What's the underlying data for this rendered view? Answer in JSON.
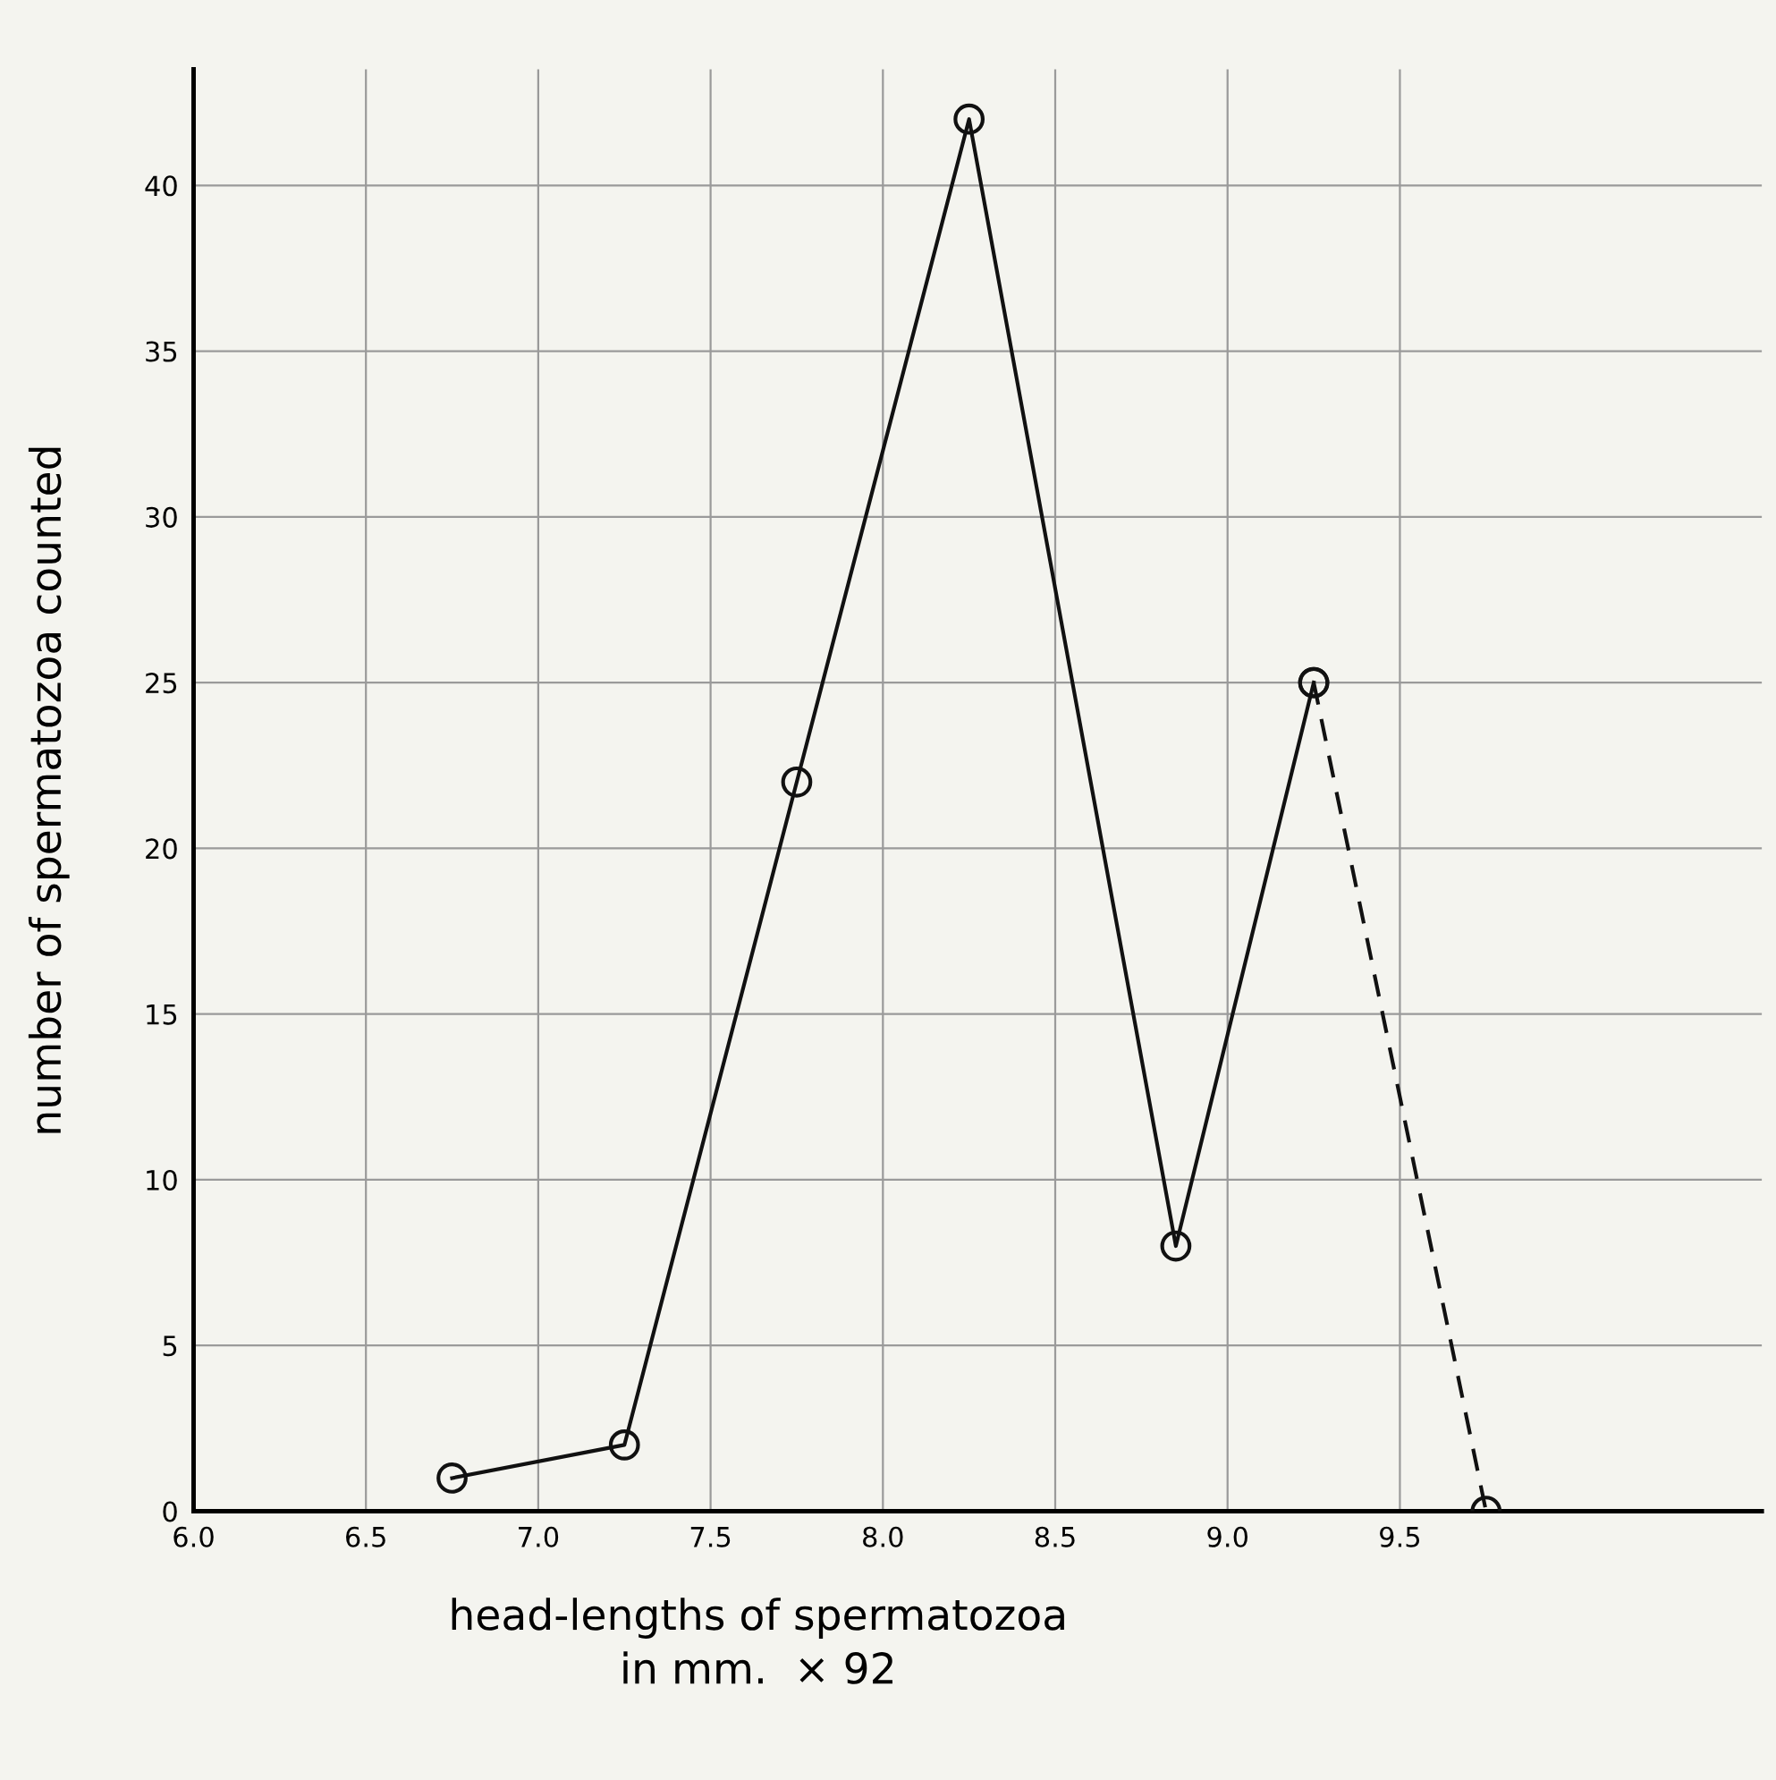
{
  "chart_data": {
    "type": "line",
    "xlabel": "head-lengths of spermatozoa\nin mm.  × 92",
    "ylabel": "number of spermatozoa counted",
    "series": [
      {
        "color": "#111111",
        "x": [
          6.75,
          7.25,
          7.75,
          8.25,
          8.85,
          9.25
        ],
        "values": [
          1,
          2,
          22,
          42,
          8,
          25
        ],
        "line_style": "solid",
        "marker": "circle"
      },
      {
        "color": "#111111",
        "x": [
          9.25,
          9.75
        ],
        "values": [
          25,
          0
        ],
        "line_style": "dashed",
        "marker": "circle"
      }
    ],
    "xlim": [
      6.0,
      10.55
    ],
    "ylim": [
      0,
      43.5
    ],
    "xticks": [
      {
        "value": 6,
        "label": "6.0"
      },
      6.5,
      {
        "value": 7,
        "label": "7.0"
      },
      7.5,
      {
        "value": 8,
        "label": "8.0"
      },
      8.5,
      {
        "value": 9,
        "label": "9.0"
      },
      9.5
    ],
    "yticks": [
      0,
      5,
      10,
      15,
      20,
      25,
      30,
      35,
      40
    ],
    "grid": true
  }
}
